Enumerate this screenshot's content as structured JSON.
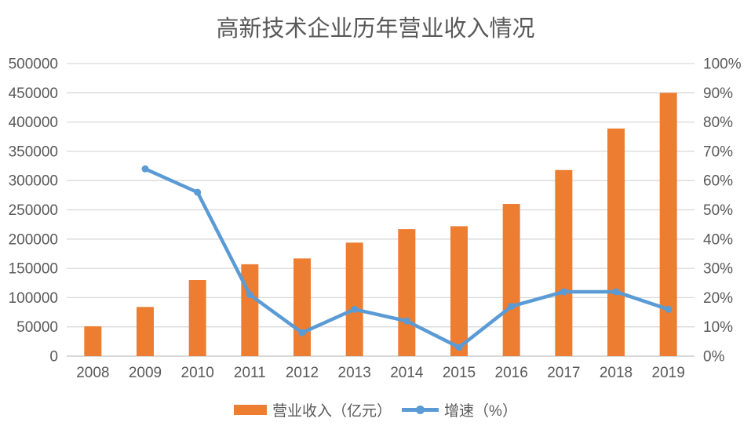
{
  "title": "高新技术企业历年营业收入情况",
  "colors": {
    "background": "#FFFFFF",
    "bar": "#ED7D31",
    "line": "#5B9BD5",
    "grid": "#D9D9D9",
    "axis_line": "#D9D9D9",
    "axis_text": "#595959",
    "title_text": "#595959"
  },
  "chart_data": {
    "type": "bar+line combo",
    "title": "高新技术企业历年营业收入情况",
    "categories": [
      "2008",
      "2009",
      "2010",
      "2011",
      "2012",
      "2013",
      "2014",
      "2015",
      "2016",
      "2017",
      "2018",
      "2019"
    ],
    "series": [
      {
        "name": "营业收入（亿元）",
        "type": "bar",
        "axis": "left",
        "values": [
          51000,
          84000,
          130000,
          157000,
          167000,
          194000,
          217000,
          222000,
          260000,
          318000,
          389000,
          450000
        ]
      },
      {
        "name": "增速（%）",
        "type": "line",
        "axis": "right",
        "values": [
          null,
          64,
          56,
          21,
          8,
          16,
          12,
          3,
          17,
          22,
          22,
          16
        ]
      }
    ],
    "left_axis": {
      "min": 0,
      "max": 500000,
      "step": 50000,
      "tick_labels": [
        "0",
        "50000",
        "100000",
        "150000",
        "200000",
        "250000",
        "300000",
        "350000",
        "400000",
        "450000",
        "500000"
      ]
    },
    "right_axis": {
      "min": 0,
      "max": 100,
      "step": 10,
      "tick_labels": [
        "0%",
        "10%",
        "20%",
        "30%",
        "40%",
        "50%",
        "60%",
        "70%",
        "80%",
        "90%",
        "100%"
      ]
    },
    "grid": true,
    "legend_position": "bottom"
  }
}
